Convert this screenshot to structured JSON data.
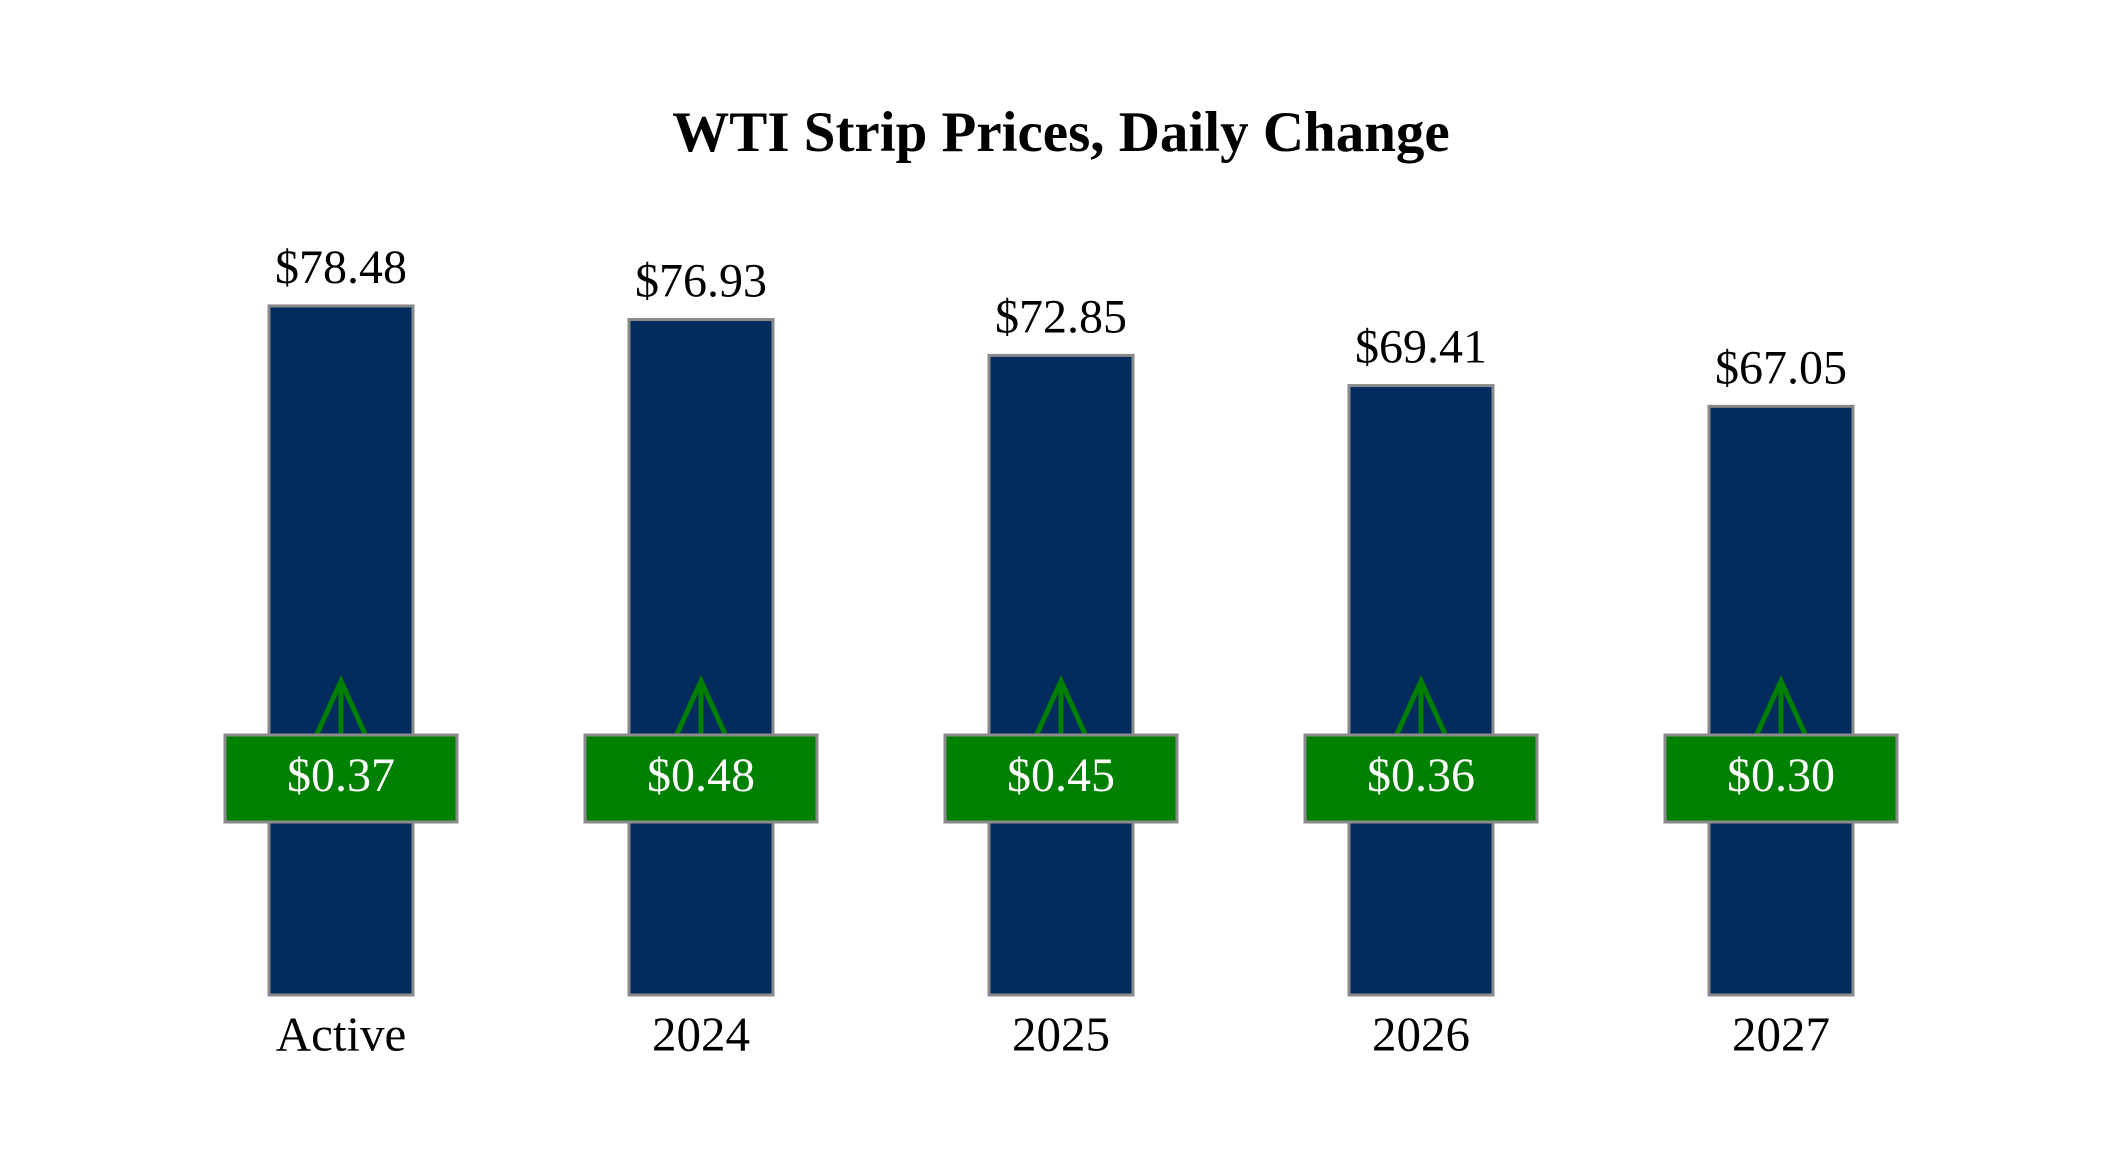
{
  "chart_data": {
    "type": "bar",
    "title": "WTI Strip Prices, Daily Change",
    "categories": [
      "Active",
      "2024",
      "2025",
      "2026",
      "2027"
    ],
    "values": [
      78.48,
      76.93,
      72.85,
      69.41,
      67.05
    ],
    "value_labels": [
      "$78.48",
      "$76.93",
      "$72.85",
      "$69.41",
      "$67.05"
    ],
    "color": "#002b5c",
    "ylim": [
      0,
      100
    ],
    "daily_change": {
      "values": [
        0.37,
        0.48,
        0.45,
        0.36,
        0.3
      ],
      "value_labels": [
        "$0.37",
        "$0.48",
        "$0.45",
        "$0.36",
        "$0.30"
      ],
      "color": "#008000"
    }
  }
}
